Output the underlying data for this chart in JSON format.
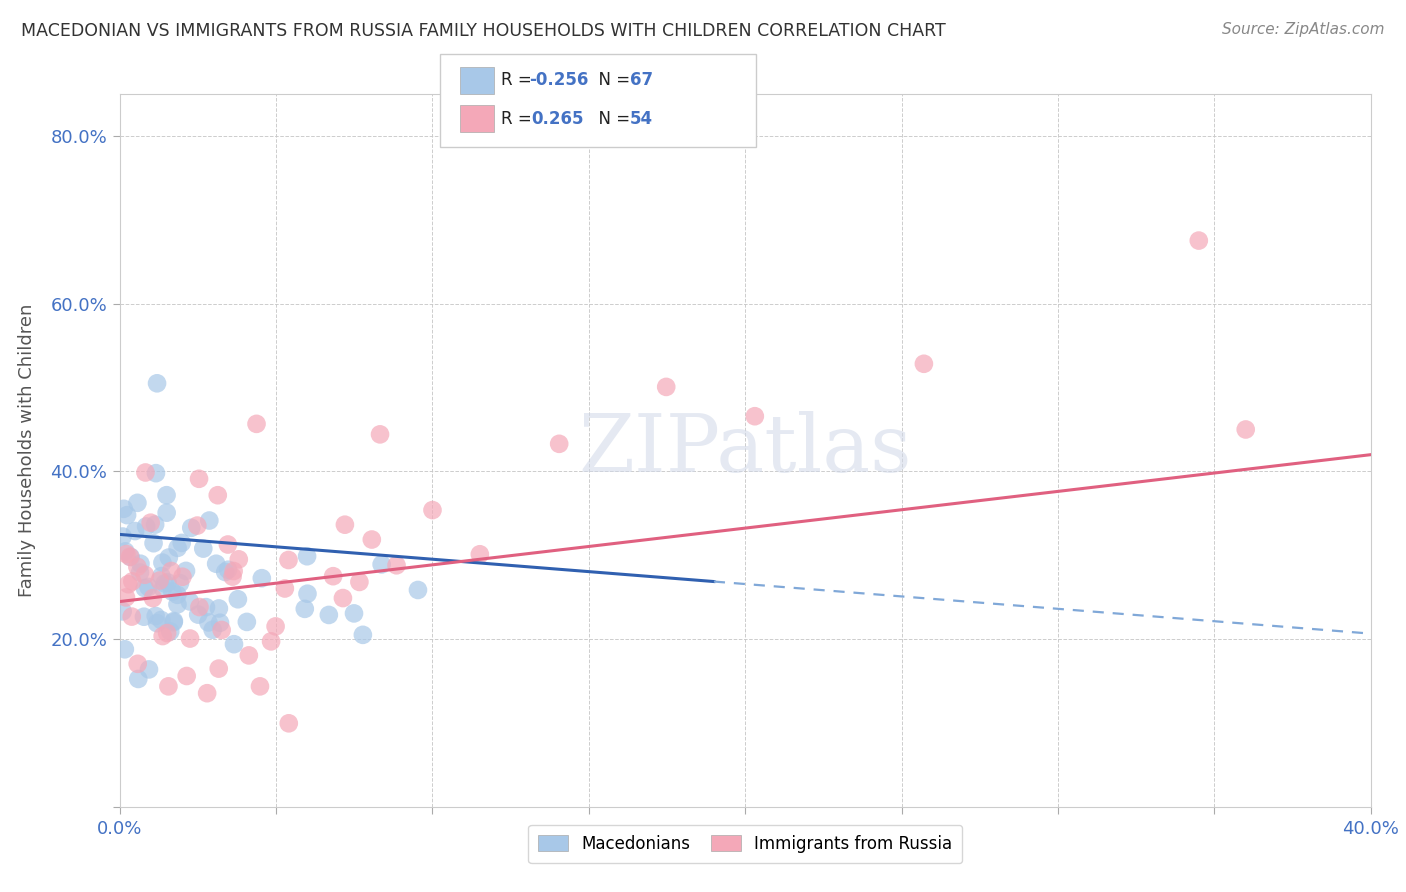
{
  "title": "MACEDONIAN VS IMMIGRANTS FROM RUSSIA FAMILY HOUSEHOLDS WITH CHILDREN CORRELATION CHART",
  "source": "Source: ZipAtlas.com",
  "ylabel": "Family Households with Children",
  "xlabel": "",
  "xlim": [
    0.0,
    0.4
  ],
  "ylim": [
    0.0,
    0.85
  ],
  "xticks": [
    0.0,
    0.05,
    0.1,
    0.15,
    0.2,
    0.25,
    0.3,
    0.35,
    0.4
  ],
  "yticks": [
    0.0,
    0.2,
    0.4,
    0.6,
    0.8
  ],
  "macedonian_color": "#a8c8e8",
  "russia_color": "#f4a8b8",
  "macedonian_line_color": "#3060b0",
  "russia_line_color": "#e06080",
  "macedonian_dash_color": "#80a8d8",
  "legend_R_mac_black": "R = ",
  "legend_R_mac_blue": "-0.256",
  "legend_N_mac_black": "N = ",
  "legend_N_mac_blue": "67",
  "legend_R_rus_black": "R =  ",
  "legend_R_rus_blue": "0.265",
  "legend_N_rus_black": "N = ",
  "legend_N_rus_blue": "54",
  "watermark": "ZIPatlas",
  "background_color": "#ffffff",
  "grid_color": "#c8c8c8",
  "tick_color": "#4472c4",
  "label_color": "#555555",
  "title_color": "#333333",
  "source_color": "#888888"
}
